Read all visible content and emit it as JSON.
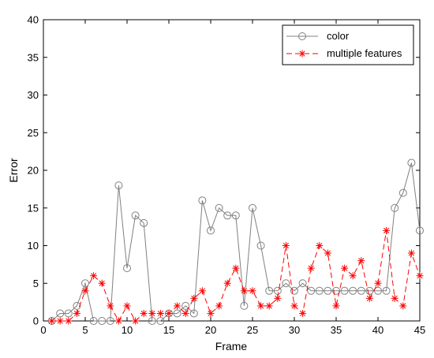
{
  "chart_data": {
    "type": "line",
    "title": "",
    "xlabel": "Frame",
    "ylabel": "Error",
    "xlim": [
      0,
      45
    ],
    "ylim": [
      0,
      40
    ],
    "xticks": [
      "0",
      "5",
      "10",
      "15",
      "20",
      "25",
      "30",
      "35",
      "40",
      "45"
    ],
    "yticks": [
      "0",
      "5",
      "10",
      "15",
      "20",
      "25",
      "30",
      "35",
      "40"
    ],
    "grid": false,
    "legend_position": "top-right",
    "x": [
      1,
      2,
      3,
      4,
      5,
      6,
      7,
      8,
      9,
      10,
      11,
      12,
      13,
      14,
      15,
      16,
      17,
      18,
      19,
      20,
      21,
      22,
      23,
      24,
      25,
      26,
      27,
      28,
      29,
      30,
      31,
      32,
      33,
      34,
      35,
      36,
      37,
      38,
      39,
      40,
      41,
      42,
      43,
      44,
      45
    ],
    "series": [
      {
        "name": "color",
        "color": "#808080",
        "marker": "circle",
        "line_style": "solid",
        "values": [
          0,
          1,
          1,
          2,
          5,
          0,
          0,
          0,
          18,
          7,
          14,
          13,
          0,
          0,
          1,
          1,
          2,
          1,
          16,
          12,
          15,
          14,
          14,
          2,
          15,
          10,
          4,
          4,
          5,
          4,
          5,
          4,
          4,
          4,
          4,
          4,
          4,
          4,
          4,
          4,
          4,
          15,
          17,
          21,
          12
        ]
      },
      {
        "name": "multiple features",
        "color": "#ff0000",
        "marker": "asterisk",
        "line_style": "dashed",
        "values": [
          0,
          0,
          0,
          1,
          4,
          6,
          5,
          2,
          0,
          2,
          0,
          1,
          1,
          1,
          1,
          2,
          1,
          3,
          4,
          1,
          2,
          5,
          7,
          4,
          4,
          2,
          2,
          3,
          10,
          2,
          1,
          7,
          10,
          9,
          2,
          7,
          6,
          8,
          3,
          5,
          12,
          3,
          2,
          9,
          6
        ]
      }
    ]
  }
}
